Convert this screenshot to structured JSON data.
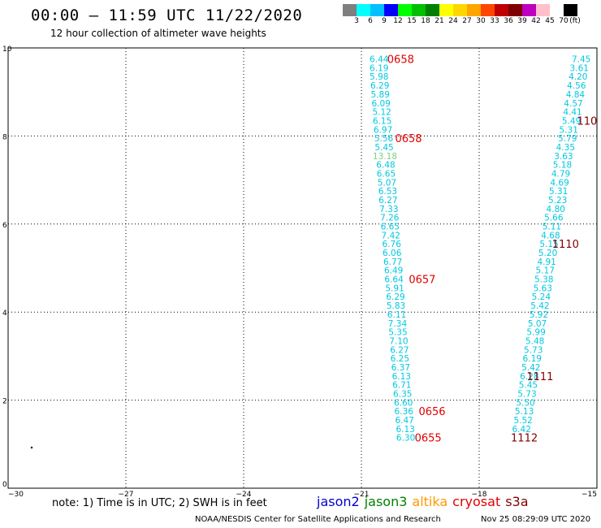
{
  "header": {
    "title": "00:00 – 11:59 UTC 11/22/2020",
    "subtitle": "12 hour collection of altimeter wave heights"
  },
  "colorbar": {
    "colors": [
      "#7f7f7f",
      "#00ffff",
      "#00c0ff",
      "#0000ff",
      "#00ff00",
      "#00c000",
      "#008000",
      "#ffff00",
      "#ffd700",
      "#ffa500",
      "#ff4500",
      "#c00000",
      "#800000",
      "#c000c0",
      "#ffc0cb",
      "#ffffff",
      "#000000"
    ],
    "labels": [
      "3",
      "6",
      "9",
      "12",
      "15",
      "18",
      "21",
      "24",
      "27",
      "30",
      "33",
      "36",
      "39",
      "42",
      "45",
      "70",
      "(ft)"
    ]
  },
  "map": {
    "x_ticks": [
      "−30",
      "−27",
      "−24",
      "−21",
      "−18",
      "−15"
    ],
    "y_ticks": [
      "0",
      "2",
      "4",
      "6",
      "8",
      "10"
    ],
    "x_range": [
      -30,
      -15
    ],
    "y_range": [
      0,
      10
    ],
    "track1_color": "#00c8e0",
    "track1": [
      {
        "lon": -20.55,
        "lat": 9.75,
        "v": "6.44"
      },
      {
        "lon": -20.55,
        "lat": 9.55,
        "v": "6.19"
      },
      {
        "lon": -20.55,
        "lat": 9.35,
        "v": "5.98"
      },
      {
        "lon": -20.53,
        "lat": 9.15,
        "v": "6.29"
      },
      {
        "lon": -20.52,
        "lat": 8.95,
        "v": "5.89"
      },
      {
        "lon": -20.5,
        "lat": 8.75,
        "v": "6.09"
      },
      {
        "lon": -20.48,
        "lat": 8.55,
        "v": "5.12"
      },
      {
        "lon": -20.47,
        "lat": 8.35,
        "v": "6.15"
      },
      {
        "lon": -20.45,
        "lat": 8.15,
        "v": "6.97"
      },
      {
        "lon": -20.43,
        "lat": 7.95,
        "v": "5.56"
      },
      {
        "lon": -20.42,
        "lat": 7.75,
        "v": "5.45"
      },
      {
        "lon": -20.4,
        "lat": 7.55,
        "v": "13.18",
        "c": "#7fd17f"
      },
      {
        "lon": -20.38,
        "lat": 7.35,
        "v": "6.48"
      },
      {
        "lon": -20.37,
        "lat": 7.15,
        "v": "6.65"
      },
      {
        "lon": -20.35,
        "lat": 6.95,
        "v": "5.07"
      },
      {
        "lon": -20.33,
        "lat": 6.75,
        "v": "6.53"
      },
      {
        "lon": -20.32,
        "lat": 6.55,
        "v": "6.27"
      },
      {
        "lon": -20.3,
        "lat": 6.35,
        "v": "7.33"
      },
      {
        "lon": -20.28,
        "lat": 6.15,
        "v": "7.26"
      },
      {
        "lon": -20.27,
        "lat": 5.95,
        "v": "6.65"
      },
      {
        "lon": -20.25,
        "lat": 5.75,
        "v": "7.42"
      },
      {
        "lon": -20.23,
        "lat": 5.55,
        "v": "6.76"
      },
      {
        "lon": -20.22,
        "lat": 5.35,
        "v": "6.06"
      },
      {
        "lon": -20.2,
        "lat": 5.15,
        "v": "6.77"
      },
      {
        "lon": -20.18,
        "lat": 4.95,
        "v": "6.49"
      },
      {
        "lon": -20.17,
        "lat": 4.75,
        "v": "6.64"
      },
      {
        "lon": -20.15,
        "lat": 4.55,
        "v": "5.91"
      },
      {
        "lon": -20.13,
        "lat": 4.35,
        "v": "6.29"
      },
      {
        "lon": -20.12,
        "lat": 4.15,
        "v": "5.83"
      },
      {
        "lon": -20.1,
        "lat": 3.95,
        "v": "6.11"
      },
      {
        "lon": -20.08,
        "lat": 3.75,
        "v": "7.34"
      },
      {
        "lon": -20.07,
        "lat": 3.55,
        "v": "5.35"
      },
      {
        "lon": -20.05,
        "lat": 3.35,
        "v": "7.10"
      },
      {
        "lon": -20.03,
        "lat": 3.15,
        "v": "6.27"
      },
      {
        "lon": -20.02,
        "lat": 2.95,
        "v": "6.25"
      },
      {
        "lon": -20.0,
        "lat": 2.75,
        "v": "6.37"
      },
      {
        "lon": -19.98,
        "lat": 2.55,
        "v": "6.13"
      },
      {
        "lon": -19.97,
        "lat": 2.35,
        "v": "6.71"
      },
      {
        "lon": -19.95,
        "lat": 2.15,
        "v": "6.35"
      },
      {
        "lon": -19.93,
        "lat": 1.95,
        "v": "6.60"
      },
      {
        "lon": -19.92,
        "lat": 1.75,
        "v": "6.36"
      },
      {
        "lon": -19.9,
        "lat": 1.55,
        "v": "6.47"
      },
      {
        "lon": -19.88,
        "lat": 1.35,
        "v": "6.13"
      },
      {
        "lon": -19.87,
        "lat": 1.15,
        "v": "6.30"
      }
    ],
    "track2_color": "#00c8e0",
    "track2": [
      {
        "lon": -15.4,
        "lat": 9.75,
        "v": "7.45"
      },
      {
        "lon": -15.45,
        "lat": 9.55,
        "v": "3.61"
      },
      {
        "lon": -15.48,
        "lat": 9.35,
        "v": "4.20"
      },
      {
        "lon": -15.52,
        "lat": 9.15,
        "v": "4.56"
      },
      {
        "lon": -15.55,
        "lat": 8.95,
        "v": "4.84"
      },
      {
        "lon": -15.6,
        "lat": 8.75,
        "v": "4.57"
      },
      {
        "lon": -15.62,
        "lat": 8.55,
        "v": "4.41"
      },
      {
        "lon": -15.65,
        "lat": 8.35,
        "v": "5.49"
      },
      {
        "lon": -15.72,
        "lat": 8.15,
        "v": "5.31"
      },
      {
        "lon": -15.75,
        "lat": 7.95,
        "v": "5.79"
      },
      {
        "lon": -15.8,
        "lat": 7.75,
        "v": "4.35"
      },
      {
        "lon": -15.85,
        "lat": 7.55,
        "v": "3.63"
      },
      {
        "lon": -15.88,
        "lat": 7.35,
        "v": "5.18"
      },
      {
        "lon": -15.92,
        "lat": 7.15,
        "v": "4.79"
      },
      {
        "lon": -15.95,
        "lat": 6.95,
        "v": "4.69"
      },
      {
        "lon": -15.98,
        "lat": 6.75,
        "v": "5.31"
      },
      {
        "lon": -16.0,
        "lat": 6.55,
        "v": "5.23"
      },
      {
        "lon": -16.05,
        "lat": 6.35,
        "v": "4.80"
      },
      {
        "lon": -16.1,
        "lat": 6.15,
        "v": "5.66"
      },
      {
        "lon": -16.15,
        "lat": 5.95,
        "v": "5.11"
      },
      {
        "lon": -16.18,
        "lat": 5.75,
        "v": "4.68"
      },
      {
        "lon": -16.22,
        "lat": 5.55,
        "v": "5.15"
      },
      {
        "lon": -16.25,
        "lat": 5.35,
        "v": "5.20"
      },
      {
        "lon": -16.28,
        "lat": 5.15,
        "v": "4.91"
      },
      {
        "lon": -16.32,
        "lat": 4.95,
        "v": "5.17"
      },
      {
        "lon": -16.35,
        "lat": 4.75,
        "v": "5.38"
      },
      {
        "lon": -16.38,
        "lat": 4.55,
        "v": "5.63"
      },
      {
        "lon": -16.42,
        "lat": 4.35,
        "v": "5.24"
      },
      {
        "lon": -16.45,
        "lat": 4.15,
        "v": "5.42"
      },
      {
        "lon": -16.48,
        "lat": 3.95,
        "v": "5.92"
      },
      {
        "lon": -16.52,
        "lat": 3.75,
        "v": "5.07"
      },
      {
        "lon": -16.55,
        "lat": 3.55,
        "v": "5.99"
      },
      {
        "lon": -16.58,
        "lat": 3.35,
        "v": "5.48"
      },
      {
        "lon": -16.62,
        "lat": 3.15,
        "v": "5.73"
      },
      {
        "lon": -16.65,
        "lat": 2.95,
        "v": "6.19"
      },
      {
        "lon": -16.68,
        "lat": 2.75,
        "v": "5.42"
      },
      {
        "lon": -16.72,
        "lat": 2.55,
        "v": "6.28"
      },
      {
        "lon": -16.75,
        "lat": 2.35,
        "v": "5.45"
      },
      {
        "lon": -16.78,
        "lat": 2.15,
        "v": "5.73"
      },
      {
        "lon": -16.82,
        "lat": 1.95,
        "v": "5.50"
      },
      {
        "lon": -16.85,
        "lat": 1.75,
        "v": "5.13"
      },
      {
        "lon": -16.88,
        "lat": 1.55,
        "v": "5.52"
      },
      {
        "lon": -16.92,
        "lat": 1.35,
        "v": "6.42"
      }
    ],
    "time_labels": [
      {
        "lon": -20.0,
        "lat": 9.75,
        "t": "0658",
        "c": "#e00000"
      },
      {
        "lon": -19.8,
        "lat": 7.95,
        "t": "0658",
        "c": "#e00000"
      },
      {
        "lon": -19.45,
        "lat": 4.75,
        "t": "0657",
        "c": "#e00000"
      },
      {
        "lon": -19.2,
        "lat": 1.75,
        "t": "0656",
        "c": "#e00000"
      },
      {
        "lon": -19.3,
        "lat": 1.15,
        "t": "0655",
        "c": "#e00000"
      },
      {
        "lon": -15.25,
        "lat": 8.35,
        "t": "110",
        "c": "#800000"
      },
      {
        "lon": -15.8,
        "lat": 5.55,
        "t": "1110",
        "c": "#800000"
      },
      {
        "lon": -16.45,
        "lat": 2.55,
        "t": "1111",
        "c": "#800000"
      },
      {
        "lon": -16.85,
        "lat": 1.15,
        "t": "1112",
        "c": "#800000"
      }
    ]
  },
  "note": "note:  1) Time is in UTC;  2) SWH is in feet",
  "legend": [
    {
      "name": "jason2",
      "color": "#0000cc"
    },
    {
      "name": "jason3",
      "color": "#008000"
    },
    {
      "name": "altika",
      "color": "#ff9900"
    },
    {
      "name": "cryosat",
      "color": "#e00000"
    },
    {
      "name": "s3a",
      "color": "#800000"
    }
  ],
  "footer": {
    "left": "NOAA/NESDIS Center for Satellite Applications and Research",
    "right": "Nov 25 08:29:09 UTC 2020"
  }
}
